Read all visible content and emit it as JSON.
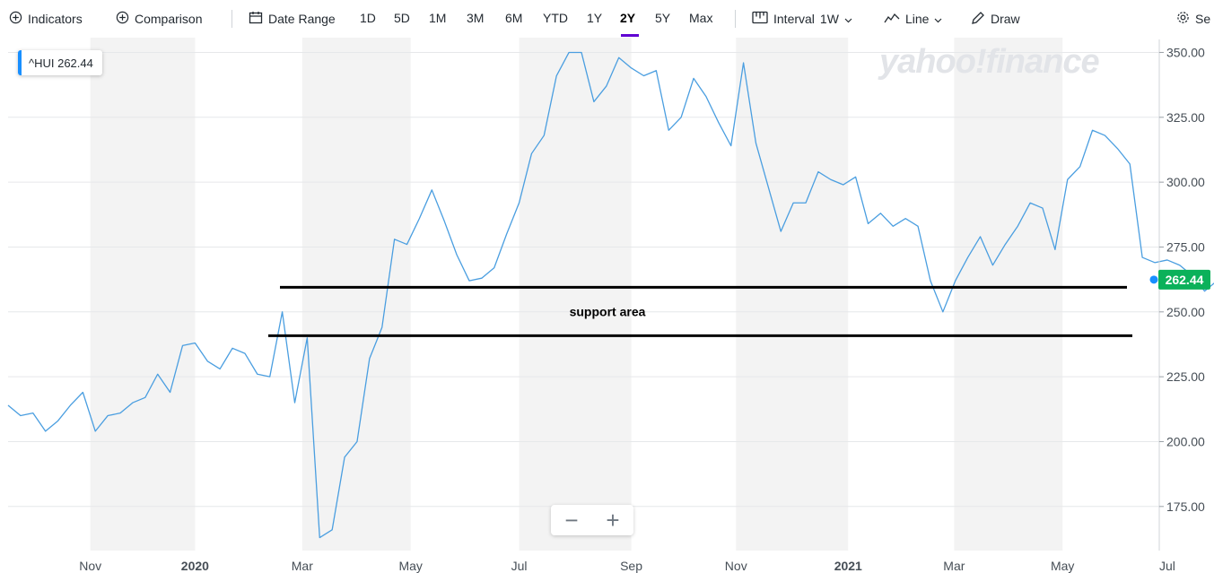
{
  "toolbar": {
    "indicators": "Indicators",
    "comparison": "Comparison",
    "date_range": "Date Range",
    "ranges": [
      "1D",
      "5D",
      "1M",
      "3M",
      "6M",
      "YTD",
      "1Y",
      "2Y",
      "5Y",
      "Max"
    ],
    "active_range": "2Y",
    "interval_label": "Interval",
    "interval_value": "1W",
    "chart_type": "Line",
    "draw": "Draw",
    "settings": "Se"
  },
  "legend": {
    "label": "^HUI 262.44"
  },
  "watermark": "yahoo!finance",
  "zoom": {
    "minus": "−",
    "plus": "+"
  },
  "colors": {
    "line": "#4a9ee0",
    "accent": "#188fff",
    "price_tag": "#0bb15a",
    "band": "#f3f3f3"
  },
  "chart_data": {
    "type": "line",
    "title": "",
    "xlabel": "",
    "ylabel": "",
    "ylim": [
      158,
      355
    ],
    "yticks": [
      175,
      200,
      225,
      250,
      275,
      300,
      325,
      350
    ],
    "ytick_labels": [
      "175.00",
      "200.00",
      "225.00",
      "250.00",
      "275.00",
      "300.00",
      "325.00",
      "350.00"
    ],
    "xtick_labels": [
      "Nov",
      "2020",
      "Mar",
      "May",
      "Jul",
      "Sep",
      "Nov",
      "2021",
      "Mar",
      "May",
      "Jul"
    ],
    "xlim": [
      0,
      92
    ],
    "xticks": [
      6.6,
      15.0,
      23.6,
      32.3,
      41.0,
      50.0,
      58.4,
      67.4,
      75.9,
      84.6,
      93.0
    ],
    "bands": [
      [
        6.6,
        15.0
      ],
      [
        23.6,
        32.3
      ],
      [
        41.0,
        50.0
      ],
      [
        58.4,
        67.4
      ],
      [
        75.9,
        84.6
      ]
    ],
    "last_value": 262.44,
    "last_value_label": "262.44",
    "series": [
      {
        "values": [
          214,
          210,
          211,
          204,
          208,
          214,
          219,
          204,
          210,
          211,
          215,
          217,
          226,
          219,
          237,
          238,
          231,
          228,
          236,
          234,
          226,
          225,
          250,
          215,
          240,
          163,
          166,
          194,
          200,
          232,
          244,
          278,
          276,
          286,
          297,
          285,
          272,
          262,
          263,
          267,
          280,
          292,
          311,
          318,
          341,
          350,
          350,
          331,
          337,
          348,
          344,
          341,
          343,
          320,
          325,
          340,
          333,
          323,
          314,
          346,
          315,
          298,
          281,
          292,
          292,
          304,
          301,
          299,
          302,
          284,
          288,
          283,
          286,
          283,
          262,
          250,
          262,
          271,
          279,
          268,
          276,
          283,
          292,
          290,
          274,
          301,
          306,
          320,
          318,
          313,
          307,
          271,
          269,
          270,
          268,
          264,
          258,
          262
        ]
      }
    ],
    "annotations": [
      {
        "text": "support area",
        "level_high": 259.5,
        "level_low": 240.8
      }
    ]
  }
}
